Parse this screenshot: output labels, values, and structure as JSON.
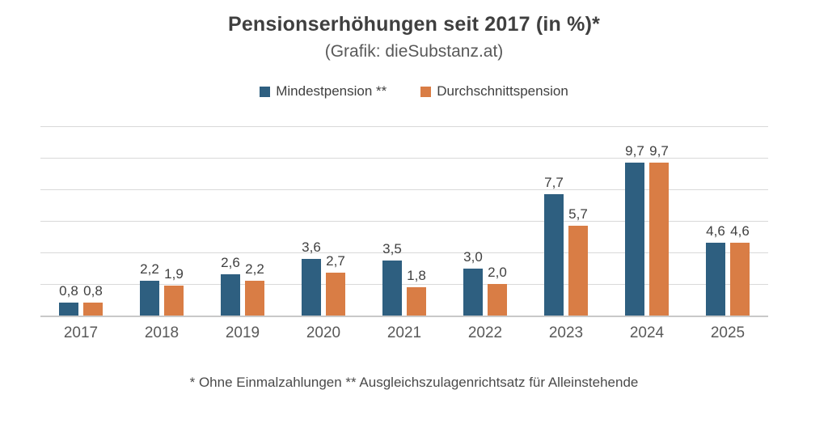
{
  "header": {
    "title": "Pensionserhöhungen seit 2017 (in %)*",
    "subtitle": "(Grafik: dieSubstanz.at)"
  },
  "footnote": "* Ohne Einmalzahlungen ** Ausgleichszulagenrichtsatz für Alleinstehende",
  "chart_data": {
    "type": "bar",
    "title": "Pensionserhöhungen seit 2017 (in %)*",
    "subtitle": "(Grafik: dieSubstanz.at)",
    "categories": [
      "2017",
      "2018",
      "2019",
      "2020",
      "2021",
      "2022",
      "2023",
      "2024",
      "2025"
    ],
    "series": [
      {
        "name": "Mindestpension **",
        "color": "#2E5F80",
        "values": [
          0.8,
          2.2,
          2.6,
          3.6,
          3.5,
          3.0,
          7.7,
          9.7,
          4.6
        ],
        "labels": [
          "0,8",
          "2,2",
          "2,6",
          "3,6",
          "3,5",
          "3,0",
          "7,7",
          "9,7",
          "4,6"
        ]
      },
      {
        "name": "Durchschnittspension",
        "color": "#D97D45",
        "values": [
          0.8,
          1.9,
          2.2,
          2.7,
          1.8,
          2.0,
          5.7,
          9.7,
          4.6
        ],
        "labels": [
          "0,8",
          "1,9",
          "2,2",
          "2,7",
          "1,8",
          "2,0",
          "5,7",
          "9,7",
          "4,6"
        ]
      }
    ],
    "xlabel": "",
    "ylabel": "",
    "ylim": [
      0,
      12
    ],
    "gridline_step": 2,
    "grid": true,
    "y_tick_labels_visible": false,
    "legend_position": "top"
  },
  "style_colors": {
    "grid": "#D9D9D9",
    "axis": "#C9C9C9",
    "title_text": "#3F3F3F",
    "muted_text": "#595959",
    "label_text": "#404040"
  }
}
